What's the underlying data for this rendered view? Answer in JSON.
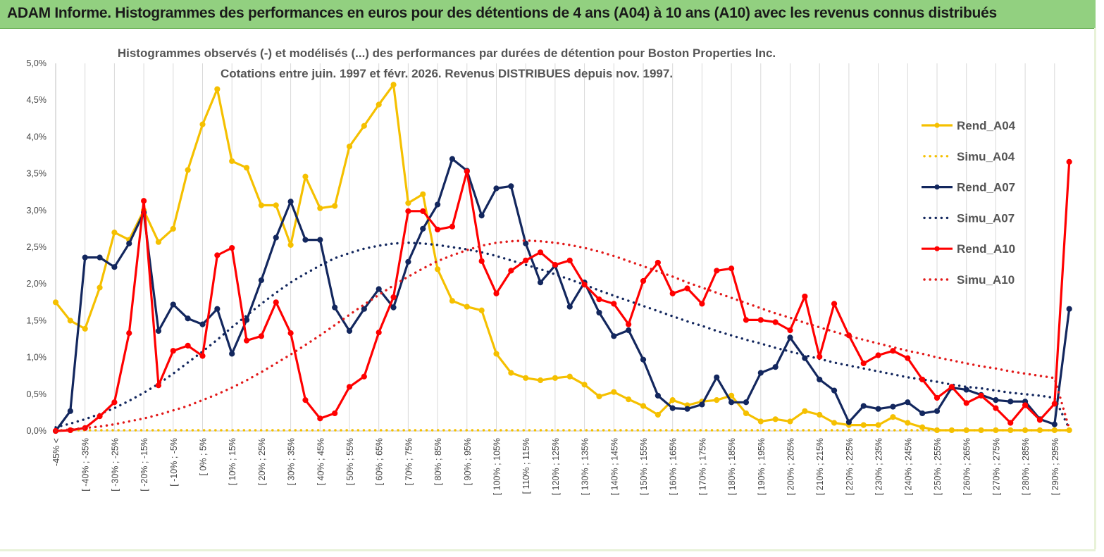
{
  "header": {
    "title": "ADAM Informe. Histogrammes des performances en euros pour des détentions de 4 ans (A04) à 10 ans (A10) avec les revenus connus distribués"
  },
  "chart_data": {
    "type": "line",
    "title": "Histogrammes observés (-) et modélisés (...) des performances par durées de détention pour Boston Properties Inc.",
    "subtitle": "Cotations entre juin. 1997 et févr. 2026. Revenus DISTRIBUES depuis nov. 1997.",
    "xlabel": "",
    "ylabel": "",
    "ylim": [
      0,
      5
    ],
    "grid": "vertical",
    "legend_position": "right",
    "yticks": [
      "0,0%",
      "0,5%",
      "1,0%",
      "1,5%",
      "2,0%",
      "2,5%",
      "3,0%",
      "3,5%",
      "4,0%",
      "4,5%",
      "5,0%"
    ],
    "xtick_labels": [
      "-45% <",
      "[ -40% ; -35%",
      "[ -30% ; -25%",
      "[ -20% ; -15%",
      "[ -10% ; -5%",
      "[ 0% ; 5%",
      "[ 10% ; 15%",
      "[ 20% ; 25%",
      "[ 30% ; 35%",
      "[ 40% ; 45%",
      "[ 50% ; 55%",
      "[ 60% ; 65%",
      "[ 70% ; 75%",
      "[ 80% ; 85%",
      "[ 90% ; 95%",
      "[ 100% ; 105%",
      "[ 110% ; 115%",
      "[ 120% ; 125%",
      "[ 130% ; 135%",
      "[ 140% ; 145%",
      "[ 150% ; 155%",
      "[ 160% ; 165%",
      "[ 170% ; 175%",
      "[ 180% ; 185%",
      "[ 190% ; 195%",
      "[ 200% ; 205%",
      "[ 210% ; 215%",
      "[ 220% ; 225%",
      "[ 230% ; 235%",
      "[ 240% ; 245%",
      "[ 250% ; 255%",
      "[ 260% ; 265%",
      "[ 270% ; 275%",
      "[ 280% ; 285%",
      "[ 290% ; 295%"
    ],
    "n_points": 70,
    "series": [
      {
        "name": "Rend_A04",
        "color": "#f5c000",
        "style": "solid",
        "values": [
          1.75,
          1.5,
          1.39,
          1.95,
          2.7,
          2.6,
          3.0,
          2.57,
          2.75,
          3.55,
          4.17,
          4.65,
          3.67,
          3.58,
          3.07,
          3.07,
          2.53,
          3.46,
          3.03,
          3.06,
          3.87,
          4.15,
          4.44,
          4.71,
          3.1,
          3.22,
          2.2,
          1.77,
          1.69,
          1.64,
          1.05,
          0.79,
          0.72,
          0.69,
          0.72,
          0.74,
          0.63,
          0.47,
          0.53,
          0.43,
          0.34,
          0.22,
          0.42,
          0.35,
          0.4,
          0.42,
          0.48,
          0.24,
          0.13,
          0.16,
          0.13,
          0.27,
          0.22,
          0.11,
          0.08,
          0.08,
          0.08,
          0.19,
          0.11,
          0.05,
          0.01,
          0.01,
          0.01,
          0.01,
          0.01,
          0.01,
          0.01,
          0.01,
          0.01,
          0.01
        ]
      },
      {
        "name": "Simu_A04",
        "color": "#f5c000",
        "style": "dotted",
        "values": [
          0.01,
          0.01,
          0.01,
          0.01,
          0.01,
          0.01,
          0.01,
          0.01,
          0.01,
          0.01,
          0.01,
          0.01,
          0.01,
          0.01,
          0.01,
          0.01,
          0.01,
          0.01,
          0.01,
          0.01,
          0.01,
          0.01,
          0.01,
          0.01,
          0.01,
          0.01,
          0.01,
          0.01,
          0.01,
          0.01,
          0.01,
          0.01,
          0.01,
          0.01,
          0.01,
          0.01,
          0.01,
          0.01,
          0.01,
          0.01,
          0.01,
          0.01,
          0.01,
          0.01,
          0.01,
          0.01,
          0.01,
          0.01,
          0.01,
          0.01,
          0.01,
          0.01,
          0.01,
          0.01,
          0.01,
          0.01,
          0.01,
          0.01,
          0.01,
          0.01,
          0.01,
          0.01,
          0.01,
          0.01,
          0.01,
          0.01,
          0.01,
          0.01,
          0.01,
          0.01
        ]
      },
      {
        "name": "Rend_A07",
        "color": "#13275e",
        "style": "solid",
        "values": [
          0.0,
          0.27,
          2.36,
          2.36,
          2.23,
          2.55,
          2.97,
          1.36,
          1.72,
          1.53,
          1.45,
          1.66,
          1.05,
          1.51,
          2.05,
          2.63,
          3.12,
          2.6,
          2.6,
          1.68,
          1.36,
          1.66,
          1.93,
          1.68,
          2.3,
          2.75,
          3.08,
          3.7,
          3.54,
          2.93,
          3.3,
          3.33,
          2.55,
          2.02,
          2.25,
          1.69,
          2.02,
          1.61,
          1.29,
          1.37,
          0.97,
          0.48,
          0.31,
          0.3,
          0.36,
          0.73,
          0.39,
          0.39,
          0.79,
          0.87,
          1.27,
          0.99,
          0.7,
          0.55,
          0.12,
          0.34,
          0.3,
          0.33,
          0.39,
          0.24,
          0.27,
          0.59,
          0.56,
          0.49,
          0.42,
          0.4,
          0.4,
          0.16,
          0.09,
          1.66
        ]
      },
      {
        "name": "Simu_A07",
        "color": "#13275e",
        "style": "dotted",
        "values": [
          0.05,
          0.1,
          0.16,
          0.23,
          0.31,
          0.41,
          0.52,
          0.64,
          0.78,
          0.93,
          1.08,
          1.24,
          1.41,
          1.57,
          1.73,
          1.88,
          2.02,
          2.14,
          2.25,
          2.35,
          2.42,
          2.48,
          2.52,
          2.55,
          2.56,
          2.55,
          2.53,
          2.5,
          2.47,
          2.43,
          2.38,
          2.32,
          2.26,
          2.2,
          2.13,
          2.06,
          1.99,
          1.91,
          1.84,
          1.77,
          1.7,
          1.63,
          1.56,
          1.49,
          1.43,
          1.36,
          1.3,
          1.24,
          1.19,
          1.13,
          1.08,
          1.03,
          0.98,
          0.93,
          0.89,
          0.85,
          0.81,
          0.77,
          0.73,
          0.7,
          0.67,
          0.63,
          0.6,
          0.58,
          0.55,
          0.52,
          0.5,
          0.48,
          0.45,
          0.03
        ]
      },
      {
        "name": "Rend_A10",
        "color": "#ff0000",
        "style": "solid",
        "values": [
          0.0,
          0.01,
          0.04,
          0.2,
          0.39,
          1.33,
          3.13,
          0.62,
          1.09,
          1.16,
          1.02,
          2.39,
          2.49,
          1.23,
          1.29,
          1.75,
          1.33,
          0.42,
          0.17,
          0.24,
          0.6,
          0.74,
          1.34,
          1.82,
          2.99,
          2.99,
          2.74,
          2.78,
          3.53,
          2.31,
          1.87,
          2.18,
          2.32,
          2.43,
          2.26,
          2.32,
          1.99,
          1.79,
          1.73,
          1.45,
          2.04,
          2.29,
          1.87,
          1.94,
          1.73,
          2.18,
          2.21,
          1.51,
          1.51,
          1.48,
          1.37,
          1.83,
          1.01,
          1.73,
          1.3,
          0.92,
          1.03,
          1.09,
          0.99,
          0.7,
          0.45,
          0.6,
          0.38,
          0.48,
          0.31,
          0.11,
          0.35,
          0.15,
          0.37,
          3.66
        ]
      },
      {
        "name": "Simu_A10",
        "color": "#e21a1a",
        "style": "dotted",
        "values": [
          0.0,
          0.02,
          0.04,
          0.06,
          0.09,
          0.13,
          0.17,
          0.22,
          0.28,
          0.34,
          0.42,
          0.5,
          0.59,
          0.69,
          0.8,
          0.92,
          1.04,
          1.17,
          1.3,
          1.44,
          1.58,
          1.72,
          1.85,
          1.98,
          2.1,
          2.21,
          2.31,
          2.39,
          2.46,
          2.52,
          2.56,
          2.58,
          2.59,
          2.58,
          2.56,
          2.53,
          2.49,
          2.44,
          2.38,
          2.31,
          2.24,
          2.17,
          2.1,
          2.02,
          1.95,
          1.88,
          1.81,
          1.74,
          1.67,
          1.6,
          1.54,
          1.47,
          1.41,
          1.35,
          1.29,
          1.24,
          1.19,
          1.14,
          1.09,
          1.05,
          1.0,
          0.96,
          0.92,
          0.88,
          0.85,
          0.81,
          0.78,
          0.75,
          0.72,
          0.03
        ]
      }
    ]
  }
}
